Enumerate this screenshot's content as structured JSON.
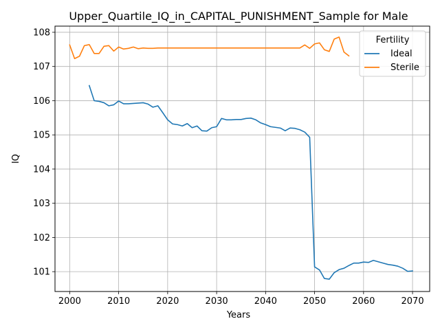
{
  "chart_data": {
    "type": "line",
    "title": "Upper_Quartile_IQ_in_CAPITAL_PUNISHMENT_Sample for Male",
    "xlabel": "Years",
    "ylabel": "IQ",
    "xlim": [
      1997,
      2073.5
    ],
    "ylim": [
      100.42,
      108.18
    ],
    "x_ticks": [
      2000,
      2010,
      2020,
      2030,
      2040,
      2050,
      2060,
      2070
    ],
    "y_ticks": [
      101,
      102,
      103,
      104,
      105,
      106,
      107,
      108
    ],
    "grid": true,
    "legend": {
      "title": "Fertility",
      "placement": "top-right"
    },
    "series": [
      {
        "name": "Ideal",
        "color": "#1f77b4",
        "x": [
          2004,
          2005,
          2006,
          2007,
          2008,
          2009,
          2010,
          2011,
          2012,
          2013,
          2014,
          2015,
          2016,
          2017,
          2018,
          2019,
          2020,
          2021,
          2022,
          2023,
          2024,
          2025,
          2026,
          2027,
          2028,
          2029,
          2030,
          2031,
          2032,
          2033,
          2034,
          2035,
          2036,
          2037,
          2038,
          2039,
          2040,
          2041,
          2042,
          2043,
          2044,
          2045,
          2046,
          2047,
          2048,
          2049,
          2050,
          2051,
          2052,
          2053,
          2054,
          2055,
          2056,
          2057,
          2058,
          2059,
          2060,
          2061,
          2062,
          2063,
          2064,
          2065,
          2066,
          2067,
          2068,
          2069,
          2070
        ],
        "y": [
          106.44,
          106.0,
          105.98,
          105.94,
          105.85,
          105.88,
          105.99,
          105.91,
          105.91,
          105.92,
          105.93,
          105.94,
          105.9,
          105.81,
          105.85,
          105.65,
          105.44,
          105.32,
          105.3,
          105.26,
          105.33,
          105.21,
          105.26,
          105.12,
          105.11,
          105.21,
          105.24,
          105.48,
          105.44,
          105.44,
          105.45,
          105.45,
          105.48,
          105.49,
          105.44,
          105.35,
          105.3,
          105.24,
          105.22,
          105.2,
          105.12,
          105.2,
          105.19,
          105.15,
          105.08,
          104.93,
          101.14,
          101.05,
          100.8,
          100.78,
          100.97,
          101.06,
          101.1,
          101.18,
          101.25,
          101.25,
          101.28,
          101.27,
          101.33,
          101.29,
          101.25,
          101.21,
          101.19,
          101.16,
          101.1,
          101.01,
          101.02
        ]
      },
      {
        "name": "Sterile",
        "color": "#ff7f0e",
        "x": [
          2000,
          2001,
          2002,
          2003,
          2004,
          2005,
          2006,
          2007,
          2008,
          2009,
          2010,
          2011,
          2012,
          2013,
          2014,
          2015,
          2016,
          2017,
          2018,
          2019,
          2020,
          2021,
          2022,
          2023,
          2024,
          2025,
          2026,
          2027,
          2028,
          2029,
          2030,
          2031,
          2032,
          2033,
          2034,
          2035,
          2036,
          2037,
          2038,
          2039,
          2040,
          2041,
          2042,
          2043,
          2044,
          2045,
          2046,
          2047,
          2048,
          2049,
          2050,
          2051,
          2052,
          2053,
          2054,
          2055,
          2056,
          2057
        ],
        "y": [
          107.63,
          107.23,
          107.3,
          107.61,
          107.64,
          107.38,
          107.38,
          107.59,
          107.61,
          107.45,
          107.57,
          107.51,
          107.53,
          107.57,
          107.52,
          107.54,
          107.53,
          107.53,
          107.54,
          107.54,
          107.54,
          107.54,
          107.54,
          107.54,
          107.54,
          107.54,
          107.54,
          107.54,
          107.54,
          107.54,
          107.54,
          107.54,
          107.54,
          107.54,
          107.54,
          107.54,
          107.54,
          107.54,
          107.54,
          107.54,
          107.54,
          107.54,
          107.54,
          107.54,
          107.54,
          107.54,
          107.54,
          107.54,
          107.63,
          107.53,
          107.66,
          107.69,
          107.49,
          107.44,
          107.8,
          107.86,
          107.42,
          107.31
        ]
      }
    ]
  }
}
